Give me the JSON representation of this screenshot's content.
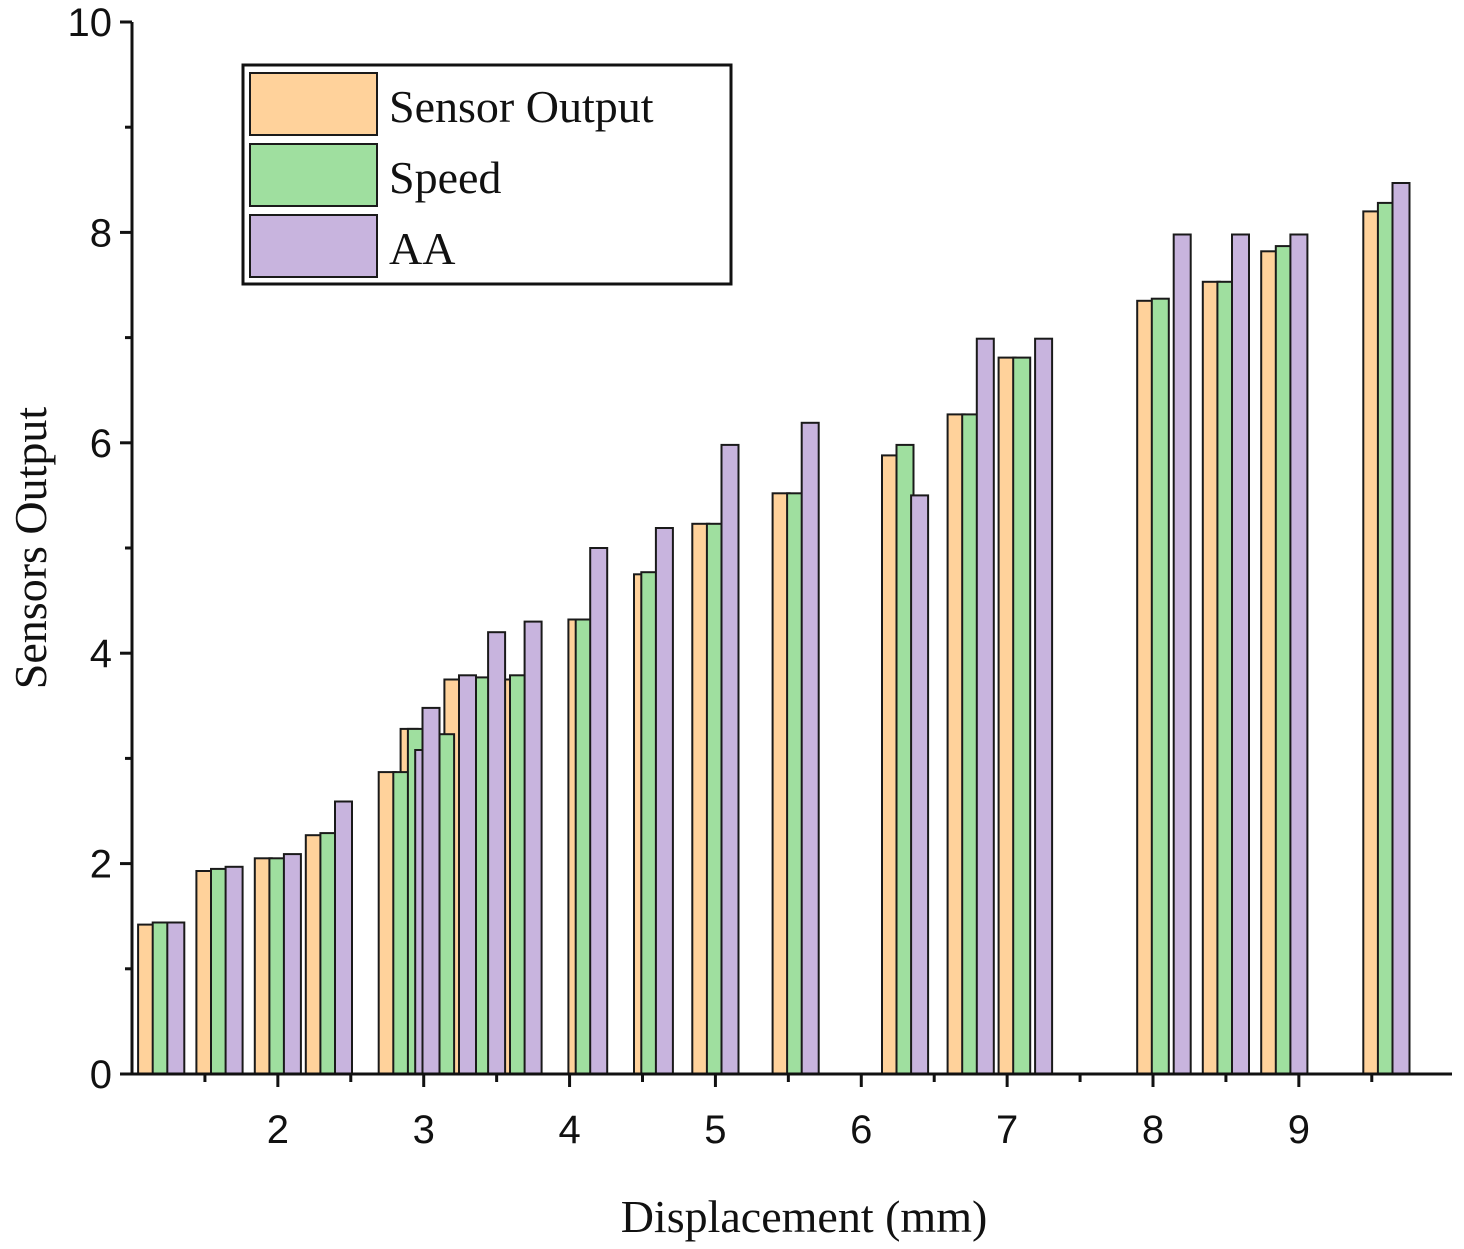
{
  "chart_data": {
    "type": "bar",
    "title": "",
    "xlabel": "Displacement (mm)",
    "ylabel": "Sensors Output",
    "xlim": [
      1,
      10.05
    ],
    "ylim": [
      0,
      10
    ],
    "x_ticks": [
      2,
      3,
      4,
      5,
      6,
      7,
      8,
      9
    ],
    "y_ticks": [
      0,
      2,
      4,
      6,
      8,
      10
    ],
    "legend_position": "top-left",
    "series": [
      {
        "name": "Sensor Output",
        "color": "#ffd29b",
        "points": [
          [
            1.1,
            1.42
          ],
          [
            1.5,
            1.93
          ],
          [
            1.9,
            2.05
          ],
          [
            2.25,
            2.27
          ],
          [
            2.75,
            2.87
          ],
          [
            2.9,
            3.28
          ],
          [
            3.2,
            3.75
          ],
          [
            3.6,
            3.75
          ],
          [
            4.05,
            4.32
          ],
          [
            4.5,
            4.75
          ],
          [
            4.9,
            5.23
          ],
          [
            5.45,
            5.52
          ],
          [
            6.2,
            5.88
          ],
          [
            6.65,
            6.27
          ],
          [
            7.0,
            6.81
          ],
          [
            7.95,
            7.35
          ],
          [
            8.4,
            7.53
          ],
          [
            8.8,
            7.82
          ],
          [
            9.5,
            8.2
          ]
        ]
      },
      {
        "name": "Speed",
        "color": "#9fdf9f",
        "points": [
          [
            1.2,
            1.44
          ],
          [
            1.6,
            1.95
          ],
          [
            2.0,
            2.05
          ],
          [
            2.35,
            2.29
          ],
          [
            2.85,
            2.87
          ],
          [
            2.95,
            3.28
          ],
          [
            3.15,
            3.23
          ],
          [
            3.4,
            3.77
          ],
          [
            3.65,
            3.79
          ],
          [
            4.1,
            4.32
          ],
          [
            4.55,
            4.77
          ],
          [
            5.0,
            5.23
          ],
          [
            5.55,
            5.52
          ],
          [
            6.3,
            5.98
          ],
          [
            6.75,
            6.27
          ],
          [
            7.1,
            6.81
          ],
          [
            8.05,
            7.37
          ],
          [
            8.5,
            7.53
          ],
          [
            8.9,
            7.87
          ],
          [
            9.6,
            8.28
          ]
        ]
      },
      {
        "name": "AA",
        "color": "#c8b4de",
        "points": [
          [
            1.3,
            1.44
          ],
          [
            1.7,
            1.97
          ],
          [
            2.1,
            2.09
          ],
          [
            2.45,
            2.59
          ],
          [
            3.0,
            3.08
          ],
          [
            3.05,
            3.48
          ],
          [
            3.3,
            3.79
          ],
          [
            3.5,
            4.2
          ],
          [
            3.75,
            4.3
          ],
          [
            4.2,
            5.0
          ],
          [
            4.65,
            5.19
          ],
          [
            5.1,
            5.98
          ],
          [
            5.65,
            6.19
          ],
          [
            6.4,
            5.5
          ],
          [
            6.85,
            6.99
          ],
          [
            7.25,
            6.99
          ],
          [
            8.2,
            7.98
          ],
          [
            8.6,
            7.98
          ],
          [
            9.0,
            7.98
          ],
          [
            9.7,
            8.47
          ]
        ]
      }
    ]
  }
}
